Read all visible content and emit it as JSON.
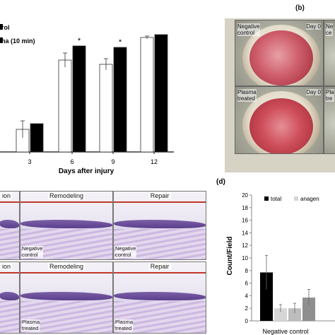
{
  "panel_b": {
    "label": "(b)",
    "cells": [
      {
        "top_left": "Negative\ncontrol",
        "top_right": "Day 0"
      },
      {
        "top_left": "Ne\nce",
        "top_right": ""
      },
      {
        "top_left": "Plasma\ntreated",
        "top_right": "Day 0"
      },
      {
        "top_left": "Pla\ntre",
        "top_right": ""
      }
    ]
  },
  "panel_a": {
    "legend": [
      "rol",
      "na (10 min)"
    ],
    "xlabel": "Days after injury",
    "asterisk": "*"
  },
  "panel_c": {
    "headers": [
      [
        "ion",
        "Remodeling",
        "Repair"
      ],
      [
        "ion",
        "Remodeling",
        "Repair"
      ]
    ],
    "row_labels": [
      "Negative\ncontrol",
      "Negative\ncontrol",
      "Plasma\ntreated",
      "Plasma\ntreated"
    ]
  },
  "panel_d": {
    "label": "(d)",
    "xlabel": "Negative control"
  },
  "chart_data": [
    {
      "type": "bar",
      "xlabel": "Days after injury",
      "ylabel": "",
      "categories": [
        "3",
        "6",
        "9",
        "12"
      ],
      "series": [
        {
          "name": "",
          "values": [
            16,
            65,
            62,
            81
          ],
          "errors": [
            6,
            5,
            4,
            1
          ]
        },
        {
          "name": "na (10 min)",
          "values": [
            20,
            75,
            74,
            83
          ],
          "errors": [
            0,
            0,
            0,
            0
          ]
        }
      ],
      "significance": [
        "",
        "*",
        "*",
        ""
      ],
      "colors": {
        "open": "#ffffff",
        "filled": "#000000"
      }
    },
    {
      "type": "bar",
      "title": "",
      "xlabel": "Negative control",
      "ylabel": "Count/Field",
      "ylim": [
        0,
        20
      ],
      "yticks": [
        "0",
        "2",
        "4",
        "6",
        "8",
        "10",
        "12",
        "14",
        "16",
        "18",
        "20"
      ],
      "legend": [
        "total",
        "anagen"
      ],
      "bars": [
        {
          "value": 7.7,
          "error": 2.7,
          "color": "#000000"
        },
        {
          "value": 2.0,
          "error": 0.6,
          "color": "#d6d6d6"
        },
        {
          "value": 2.0,
          "error": 0.8,
          "color": "#bdbdbd"
        },
        {
          "value": 3.7,
          "error": 1.3,
          "color": "#8f8f8f"
        }
      ]
    }
  ]
}
